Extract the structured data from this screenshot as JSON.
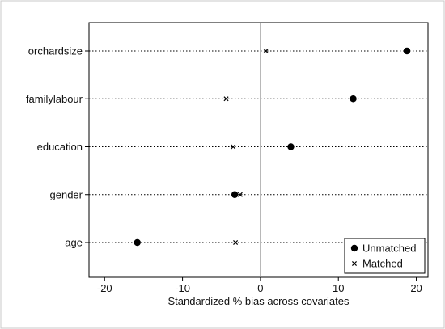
{
  "chart_data": {
    "type": "scatter",
    "title": "",
    "xlabel": "Standardized % bias across covariates",
    "ylabel": "",
    "xlim": [
      -22,
      21.5
    ],
    "xticks": [
      -20,
      -10,
      0,
      10,
      20
    ],
    "categories": [
      "orchardsize",
      "familylabour",
      "education",
      "gender",
      "age"
    ],
    "series": [
      {
        "name": "Unmatched",
        "marker": "filled-circle",
        "color": "#000000",
        "values": [
          18.8,
          11.9,
          3.9,
          -3.3,
          -15.8
        ]
      },
      {
        "name": "Matched",
        "marker": "x",
        "color": "#000000",
        "values": [
          0.7,
          -4.4,
          -3.5,
          -2.6,
          -3.2
        ]
      }
    ],
    "grid": "dotted horizontal lines per category",
    "zero_line": 0,
    "legend_position": "bottom-right"
  }
}
